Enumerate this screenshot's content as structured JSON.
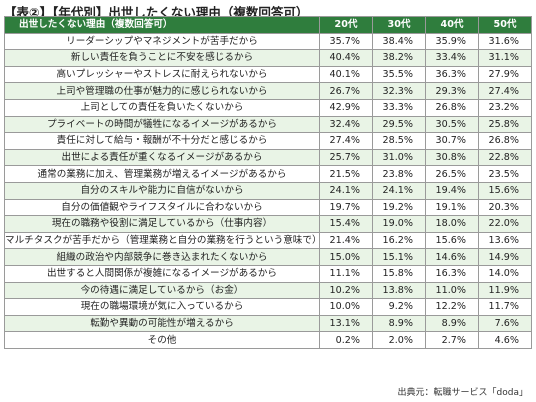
{
  "title": "【表②】【年代別】出世したくない理由（複数回答可）",
  "headers": [
    "出世したくない理由（複数回答可）",
    "20代",
    "30代",
    "40代",
    "50代"
  ],
  "rows": [
    {
      "reason": "リーダーシップやマネジメントが苦手だから",
      "values": [
        "35.7%",
        "38.4%",
        "35.9%",
        "31.6%"
      ]
    },
    {
      "reason": "新しい責任を負うことに不安を感じるから",
      "values": [
        "40.4%",
        "38.2%",
        "33.4%",
        "31.1%"
      ]
    },
    {
      "reason": "高いプレッシャーやストレスに耐えられないから",
      "values": [
        "40.1%",
        "35.5%",
        "36.3%",
        "27.9%"
      ]
    },
    {
      "reason": "上司や管理職の仕事が魅力的に感じられないから",
      "values": [
        "26.7%",
        "32.3%",
        "29.3%",
        "27.4%"
      ]
    },
    {
      "reason": "上司としての責任を負いたくないから",
      "values": [
        "42.9%",
        "33.3%",
        "26.8%",
        "23.2%"
      ]
    },
    {
      "reason": "プライベートの時間が犠牲になるイメージがあるから",
      "values": [
        "32.4%",
        "29.5%",
        "30.5%",
        "25.8%"
      ]
    },
    {
      "reason": "責任に対して給与・報酬が不十分だと感じるから",
      "values": [
        "27.4%",
        "28.5%",
        "30.7%",
        "26.8%"
      ]
    },
    {
      "reason": "出世による責任が重くなるイメージがあるから",
      "values": [
        "25.7%",
        "31.0%",
        "30.8%",
        "22.8%"
      ]
    },
    {
      "reason": "通常の業務に加え、管理業務が増えるイメージがあるから",
      "values": [
        "21.5%",
        "23.8%",
        "26.5%",
        "23.5%"
      ]
    },
    {
      "reason": "自分のスキルや能力に自信がないから",
      "values": [
        "24.1%",
        "24.1%",
        "19.4%",
        "15.6%"
      ]
    },
    {
      "reason": "自分の価値観やライフスタイルに合わないから",
      "values": [
        "19.7%",
        "19.2%",
        "19.1%",
        "20.3%"
      ]
    },
    {
      "reason": "現在の職務や役割に満足しているから（仕事内容）",
      "values": [
        "15.4%",
        "19.0%",
        "18.0%",
        "22.0%"
      ]
    },
    {
      "reason": "マルチタスクが苦手だから（管理業務と自分の業務を行うという意味で）",
      "values": [
        "21.4%",
        "16.2%",
        "15.6%",
        "13.6%"
      ]
    },
    {
      "reason": "組織の政治や内部競争に巻き込まれたくないから",
      "values": [
        "15.0%",
        "15.1%",
        "14.6%",
        "14.9%"
      ]
    },
    {
      "reason": "出世すると人間関係が複雑になるイメージがあるから",
      "values": [
        "11.1%",
        "15.8%",
        "16.3%",
        "14.0%"
      ]
    },
    {
      "reason": "今の待遇に満足しているから（お金）",
      "values": [
        "10.2%",
        "13.8%",
        "11.0%",
        "11.9%"
      ]
    },
    {
      "reason": "現在の職場環境が気に入っているから",
      "values": [
        "10.0%",
        "9.2%",
        "12.2%",
        "11.7%"
      ]
    },
    {
      "reason": "転勤や異動の可能性が増えるから",
      "values": [
        "13.1%",
        "8.9%",
        "8.9%",
        "7.6%"
      ]
    },
    {
      "reason": "その他",
      "values": [
        "0.2%",
        "2.0%",
        "2.7%",
        "4.6%"
      ]
    }
  ],
  "source": "出典元：転職サービス「doda」",
  "colors": {
    "header_bg": "#2f7d3d",
    "header_text": "#ffffff",
    "stripe": "#e9f4e6",
    "border": "#9a9a9a"
  }
}
